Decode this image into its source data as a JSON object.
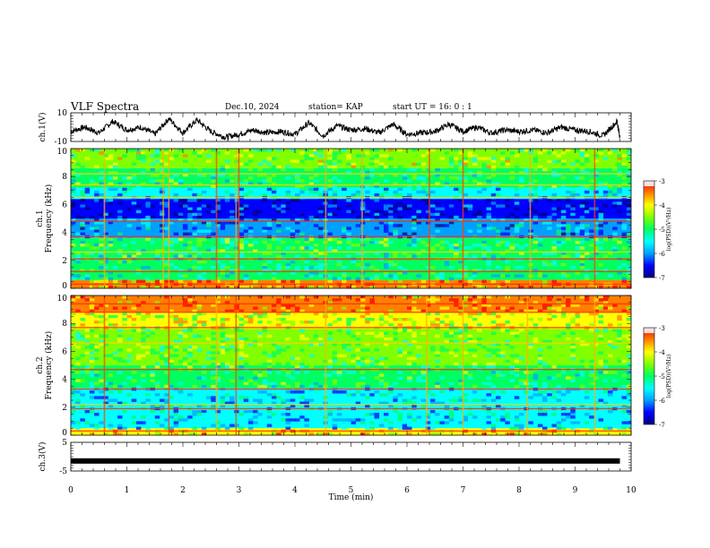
{
  "header": {
    "title": "VLF Spectra",
    "date": "Dec.10, 2024",
    "station": "station= KAP",
    "start_ut": "start  UT  =   16: 0  : 1"
  },
  "colors": {
    "colormap": [
      "#000080",
      "#0000ff",
      "#00a0ff",
      "#00ffff",
      "#00ff60",
      "#80ff00",
      "#ffff00",
      "#ff8000",
      "#ff0000",
      "#ffffff"
    ],
    "background": "#ffffff",
    "trace": "#000000"
  },
  "chart_data": [
    {
      "type": "line",
      "ylabel": "ch.1(V)",
      "ylim": [
        -10,
        10
      ],
      "yticks": [
        "10",
        "-10"
      ],
      "xlim": [
        0,
        10
      ],
      "series": [
        {
          "x": [
            0,
            0.25,
            0.5,
            0.75,
            1,
            1.25,
            1.5,
            1.75,
            2,
            2.25,
            2.5,
            2.75,
            3,
            3.25,
            3.5,
            3.75,
            4,
            4.25,
            4.5,
            4.75,
            5,
            5.25,
            5.5,
            5.75,
            6,
            6.25,
            6.5,
            6.75,
            7,
            7.25,
            7.5,
            7.75,
            8,
            8.25,
            8.5,
            8.75,
            9,
            9.25,
            9.5,
            9.75,
            9.8
          ],
          "values": [
            -3,
            0,
            -4,
            4,
            -2,
            0,
            -5,
            6,
            -4,
            5,
            -3,
            -7,
            -5,
            -2,
            -4,
            -3,
            -5,
            3,
            -6,
            1,
            -2,
            -1,
            -4,
            2,
            -5,
            -4,
            -3,
            2,
            -3,
            0,
            -4,
            -2,
            -3,
            -2,
            -4,
            0,
            -2,
            -3,
            -6,
            4,
            -7
          ]
        }
      ]
    },
    {
      "type": "heatmap",
      "ylabel": "ch.1\nFrequency (kHz)",
      "ylim": [
        0,
        10
      ],
      "yticks": [
        "0",
        "2",
        "4",
        "6",
        "8",
        "10"
      ],
      "xlim": [
        0,
        10
      ],
      "colorbar": {
        "label": "log(PSD)(V²/Hz)",
        "range": [
          -7,
          -3
        ],
        "ticks": [
          "-3",
          "-4",
          "-5",
          "-6",
          "-7"
        ]
      },
      "bands": [
        {
          "from": 0,
          "to": 0.6,
          "level": -3.8
        },
        {
          "from": 0.6,
          "to": 2.2,
          "level": -5.2
        },
        {
          "from": 2.2,
          "to": 3.6,
          "level": -5.0
        },
        {
          "from": 3.6,
          "to": 5.0,
          "level": -5.9
        },
        {
          "from": 5.0,
          "to": 6.4,
          "level": -6.3
        },
        {
          "from": 6.4,
          "to": 7.2,
          "level": -5.6
        },
        {
          "from": 7.2,
          "to": 8.6,
          "level": -5.0
        },
        {
          "from": 8.6,
          "to": 10,
          "level": -4.6
        }
      ],
      "lines_khz": [
        0.3,
        1.2,
        2.1,
        2.6,
        3.7,
        4.8,
        6.5,
        7.4,
        8.2
      ],
      "spikes_min": [
        0.6,
        1.65,
        1.75,
        2.6,
        2.95,
        3.0,
        4.55,
        5.2,
        6.4,
        7.0,
        8.2,
        9.35
      ]
    },
    {
      "type": "heatmap",
      "ylabel": "ch.2\nFrequency (kHz)",
      "ylim": [
        0,
        10
      ],
      "yticks": [
        "0",
        "2",
        "4",
        "6",
        "8",
        "10"
      ],
      "xlim": [
        0,
        10
      ],
      "colorbar": {
        "label": "log(PSD)(V²/Hz)",
        "range": [
          -7,
          -3
        ],
        "ticks": [
          "-3",
          "-4",
          "-5",
          "-6",
          "-7"
        ]
      },
      "bands": [
        {
          "from": 0,
          "to": 0.5,
          "level": -3.9
        },
        {
          "from": 0.5,
          "to": 2.0,
          "level": -5.6
        },
        {
          "from": 2.0,
          "to": 3.4,
          "level": -5.6
        },
        {
          "from": 3.4,
          "to": 5.0,
          "level": -5.0
        },
        {
          "from": 5.0,
          "to": 7.6,
          "level": -4.7
        },
        {
          "from": 7.6,
          "to": 8.8,
          "level": -4.3
        },
        {
          "from": 8.8,
          "to": 10,
          "level": -3.7
        }
      ],
      "lines_khz": [
        0.3,
        1.9,
        2.2,
        3.3,
        4.7,
        6.6,
        7.7,
        8.8,
        9.4
      ],
      "spikes_min": [
        0.6,
        1.75,
        2.6,
        2.95,
        4.55,
        6.35,
        7.0,
        8.15,
        9.35
      ]
    },
    {
      "type": "line",
      "ylabel": "ch.3(V)",
      "ylim": [
        -5,
        5
      ],
      "yticks": [
        "5",
        "-5"
      ],
      "xlabel": "Time  (min)",
      "xlim": [
        0,
        10
      ],
      "xticks": [
        "0",
        "1",
        "2",
        "3",
        "4",
        "5",
        "6",
        "7",
        "8",
        "9",
        "10"
      ],
      "series": [
        {
          "x": [
            0,
            9.8
          ],
          "values": [
            -1.5,
            -1.5
          ]
        }
      ]
    }
  ]
}
